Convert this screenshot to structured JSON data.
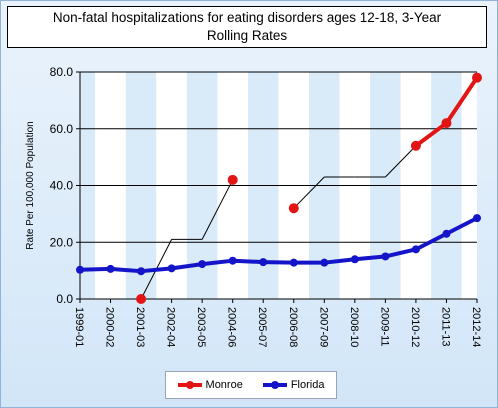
{
  "chart_data": {
    "type": "line",
    "title_lines": [
      "Non-fatal hospitalizations for eating disorders ages 12-18, 3-Year",
      "Rolling Rates"
    ],
    "ylabel": "Rate Per 100,000 Population",
    "xlabel": "",
    "ylim": [
      0,
      80
    ],
    "yticks": [
      "0.0",
      "20.0",
      "40.0",
      "60.0",
      "80.0"
    ],
    "categories": [
      "1999-01",
      "2000-02",
      "2001-03",
      "2002-04",
      "2003-05",
      "2004-06",
      "2005-07",
      "2006-08",
      "2007-09",
      "2008-10",
      "2009-11",
      "2010-12",
      "2011-13",
      "2012-14"
    ],
    "grid": true,
    "legend_position": "bottom",
    "series": [
      {
        "name": "Monroe",
        "color": "#e31414",
        "values": [
          null,
          null,
          0.0,
          null,
          null,
          42.0,
          null,
          32.0,
          null,
          null,
          null,
          54.0,
          62.0,
          78.0
        ]
      },
      {
        "name": "Florida",
        "color": "#1414c8",
        "values": [
          10.3,
          10.6,
          9.8,
          10.8,
          12.3,
          13.5,
          13.0,
          12.8,
          12.8,
          14.0,
          15.0,
          17.5,
          23.0,
          28.5
        ]
      }
    ],
    "connector": {
      "color": "#000000",
      "values": [
        null,
        null,
        0.0,
        21.0,
        21.0,
        42.0,
        null,
        32.0,
        43.0,
        43.0,
        43.0,
        54.0,
        null,
        null
      ]
    }
  }
}
